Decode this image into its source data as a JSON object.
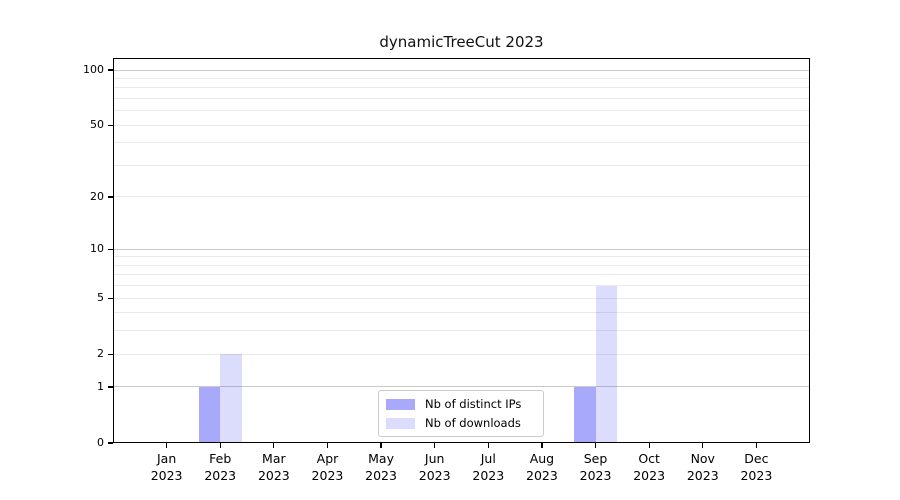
{
  "chart_data": {
    "type": "bar",
    "title": "dynamicTreeCut 2023",
    "months": [
      "Jan",
      "Feb",
      "Mar",
      "Apr",
      "May",
      "Jun",
      "Jul",
      "Aug",
      "Sep",
      "Oct",
      "Nov",
      "Dec"
    ],
    "year": "2023",
    "series": [
      {
        "name": "Nb of distinct IPs",
        "color": "rgba(60,60,245,0.44)",
        "values": [
          0,
          1,
          0,
          0,
          0,
          0,
          0,
          0,
          1,
          0,
          0,
          0
        ]
      },
      {
        "name": "Nb of downloads",
        "color": "rgba(60,60,245,0.18)",
        "values": [
          0,
          2,
          0,
          0,
          0,
          0,
          0,
          0,
          6,
          0,
          0,
          0
        ]
      }
    ],
    "yscale": "log1p",
    "yticks": [
      0,
      1,
      2,
      5,
      10,
      20,
      50,
      100
    ],
    "ylim": [
      0,
      116
    ],
    "grid": {
      "major": [
        1,
        10,
        100
      ],
      "minor": [
        2,
        3,
        4,
        5,
        6,
        7,
        8,
        9,
        20,
        30,
        40,
        50,
        60,
        70,
        80,
        90
      ],
      "major_color": "#c9c9c9",
      "minor_color": "#eaeaea"
    },
    "legend": {
      "position": "lower center",
      "border_color": "#cccccc",
      "entries": [
        "Nb of distinct IPs",
        "Nb of downloads"
      ]
    }
  }
}
